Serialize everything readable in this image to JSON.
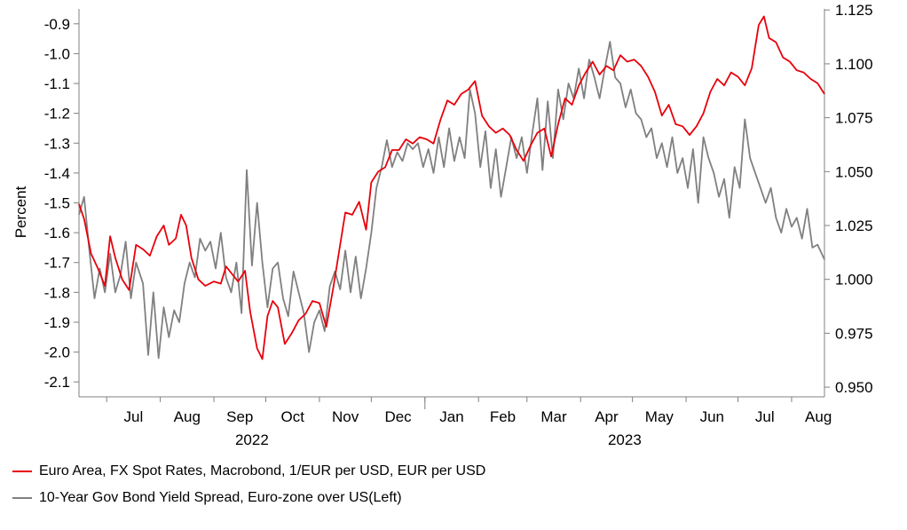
{
  "chart_data": {
    "type": "line",
    "ylabel_left": "Percent",
    "ylabel_right": "",
    "y_left": {
      "lim": [
        -2.15,
        -0.85
      ],
      "ticks": [
        "-0.9",
        "-1.0",
        "-1.1",
        "-1.2",
        "-1.3",
        "-1.4",
        "-1.5",
        "-1.6",
        "-1.7",
        "-1.8",
        "-1.9",
        "-2.0",
        "-2.1"
      ]
    },
    "y_right": {
      "lim": [
        0.9455,
        1.1255
      ],
      "ticks": [
        "1.125",
        "1.100",
        "1.075",
        "1.050",
        "1.025",
        "1.000",
        "0.975",
        "0.950"
      ]
    },
    "x_months": [
      "Jul",
      "Aug",
      "Sep",
      "Oct",
      "Nov",
      "Dec",
      "Jan",
      "Feb",
      "Mar",
      "Apr",
      "May",
      "Jun",
      "Jul",
      "Aug"
    ],
    "x_years": [
      "2022",
      "2023"
    ],
    "x_range": [
      "2022-06-15",
      "2023-08-20"
    ],
    "series": [
      {
        "name": "Euro Area, FX Spot Rates, Macrobond, 1/EUR per USD, EUR per USD",
        "axis": "right",
        "color": "#e8000b",
        "points": [
          [
            "2022-06-15",
            1.035
          ],
          [
            "2022-06-18",
            1.028
          ],
          [
            "2022-06-22",
            1.012
          ],
          [
            "2022-06-26",
            1.005
          ],
          [
            "2022-06-30",
            0.997
          ],
          [
            "2022-07-03",
            1.02
          ],
          [
            "2022-07-06",
            1.01
          ],
          [
            "2022-07-10",
            1.0
          ],
          [
            "2022-07-14",
            0.995
          ],
          [
            "2022-07-18",
            1.016
          ],
          [
            "2022-07-22",
            1.014
          ],
          [
            "2022-07-26",
            1.011
          ],
          [
            "2022-07-30",
            1.02
          ],
          [
            "2022-08-03",
            1.025
          ],
          [
            "2022-08-06",
            1.016
          ],
          [
            "2022-08-10",
            1.019
          ],
          [
            "2022-08-13",
            1.03
          ],
          [
            "2022-08-16",
            1.025
          ],
          [
            "2022-08-19",
            1.01
          ],
          [
            "2022-08-23",
            1.0
          ],
          [
            "2022-08-27",
            0.997
          ],
          [
            "2022-09-01",
            0.999
          ],
          [
            "2022-09-05",
            0.998
          ],
          [
            "2022-09-08",
            1.006
          ],
          [
            "2022-09-11",
            1.003
          ],
          [
            "2022-09-15",
            0.999
          ],
          [
            "2022-09-19",
            1.004
          ],
          [
            "2022-09-22",
            0.985
          ],
          [
            "2022-09-26",
            0.968
          ],
          [
            "2022-09-29",
            0.963
          ],
          [
            "2022-10-02",
            0.983
          ],
          [
            "2022-10-05",
            0.99
          ],
          [
            "2022-10-08",
            0.987
          ],
          [
            "2022-10-12",
            0.97
          ],
          [
            "2022-10-16",
            0.975
          ],
          [
            "2022-10-20",
            0.981
          ],
          [
            "2022-10-24",
            0.984
          ],
          [
            "2022-10-28",
            0.99
          ],
          [
            "2022-11-01",
            0.989
          ],
          [
            "2022-11-05",
            0.978
          ],
          [
            "2022-11-09",
            0.996
          ],
          [
            "2022-11-12",
            1.011
          ],
          [
            "2022-11-16",
            1.031
          ],
          [
            "2022-11-20",
            1.03
          ],
          [
            "2022-11-24",
            1.036
          ],
          [
            "2022-11-28",
            1.023
          ],
          [
            "2022-12-01",
            1.045
          ],
          [
            "2022-12-05",
            1.05
          ],
          [
            "2022-12-09",
            1.052
          ],
          [
            "2022-12-13",
            1.06
          ],
          [
            "2022-12-17",
            1.06
          ],
          [
            "2022-12-21",
            1.065
          ],
          [
            "2022-12-25",
            1.063
          ],
          [
            "2022-12-29",
            1.066
          ],
          [
            "2023-01-02",
            1.065
          ],
          [
            "2023-01-06",
            1.063
          ],
          [
            "2023-01-10",
            1.074
          ],
          [
            "2023-01-14",
            1.083
          ],
          [
            "2023-01-18",
            1.081
          ],
          [
            "2023-01-22",
            1.086
          ],
          [
            "2023-01-26",
            1.088
          ],
          [
            "2023-01-30",
            1.092
          ],
          [
            "2023-02-03",
            1.076
          ],
          [
            "2023-02-07",
            1.071
          ],
          [
            "2023-02-11",
            1.068
          ],
          [
            "2023-02-15",
            1.07
          ],
          [
            "2023-02-19",
            1.067
          ],
          [
            "2023-02-23",
            1.06
          ],
          [
            "2023-02-27",
            1.055
          ],
          [
            "2023-03-03",
            1.062
          ],
          [
            "2023-03-07",
            1.068
          ],
          [
            "2023-03-11",
            1.07
          ],
          [
            "2023-03-15",
            1.057
          ],
          [
            "2023-03-19",
            1.072
          ],
          [
            "2023-03-23",
            1.084
          ],
          [
            "2023-03-27",
            1.081
          ],
          [
            "2023-03-31",
            1.09
          ],
          [
            "2023-04-04",
            1.096
          ],
          [
            "2023-04-08",
            1.101
          ],
          [
            "2023-04-12",
            1.095
          ],
          [
            "2023-04-16",
            1.099
          ],
          [
            "2023-04-20",
            1.097
          ],
          [
            "2023-04-24",
            1.104
          ],
          [
            "2023-04-28",
            1.101
          ],
          [
            "2023-05-02",
            1.102
          ],
          [
            "2023-05-06",
            1.099
          ],
          [
            "2023-05-10",
            1.094
          ],
          [
            "2023-05-14",
            1.087
          ],
          [
            "2023-05-18",
            1.076
          ],
          [
            "2023-05-22",
            1.081
          ],
          [
            "2023-05-26",
            1.072
          ],
          [
            "2023-05-30",
            1.071
          ],
          [
            "2023-06-03",
            1.067
          ],
          [
            "2023-06-07",
            1.071
          ],
          [
            "2023-06-11",
            1.077
          ],
          [
            "2023-06-15",
            1.087
          ],
          [
            "2023-06-19",
            1.093
          ],
          [
            "2023-06-23",
            1.09
          ],
          [
            "2023-06-27",
            1.096
          ],
          [
            "2023-07-01",
            1.094
          ],
          [
            "2023-07-05",
            1.09
          ],
          [
            "2023-07-09",
            1.098
          ],
          [
            "2023-07-13",
            1.118
          ],
          [
            "2023-07-16",
            1.122
          ],
          [
            "2023-07-19",
            1.112
          ],
          [
            "2023-07-23",
            1.11
          ],
          [
            "2023-07-27",
            1.103
          ],
          [
            "2023-07-31",
            1.101
          ],
          [
            "2023-08-04",
            1.097
          ],
          [
            "2023-08-08",
            1.096
          ],
          [
            "2023-08-12",
            1.093
          ],
          [
            "2023-08-16",
            1.091
          ],
          [
            "2023-08-20",
            1.086
          ]
        ]
      },
      {
        "name": "10-Year Gov Bond Yield Spread, Euro-zone over US(Left)",
        "axis": "left",
        "color": "#808080",
        "points": [
          [
            "2022-06-15",
            -1.54
          ],
          [
            "2022-06-18",
            -1.48
          ],
          [
            "2022-06-21",
            -1.66
          ],
          [
            "2022-06-24",
            -1.82
          ],
          [
            "2022-06-27",
            -1.72
          ],
          [
            "2022-06-30",
            -1.8
          ],
          [
            "2022-07-03",
            -1.67
          ],
          [
            "2022-07-06",
            -1.8
          ],
          [
            "2022-07-09",
            -1.74
          ],
          [
            "2022-07-12",
            -1.63
          ],
          [
            "2022-07-15",
            -1.82
          ],
          [
            "2022-07-18",
            -1.7
          ],
          [
            "2022-07-22",
            -1.77
          ],
          [
            "2022-07-25",
            -2.01
          ],
          [
            "2022-07-28",
            -1.8
          ],
          [
            "2022-07-31",
            -2.02
          ],
          [
            "2022-08-03",
            -1.85
          ],
          [
            "2022-08-06",
            -1.95
          ],
          [
            "2022-08-09",
            -1.86
          ],
          [
            "2022-08-12",
            -1.9
          ],
          [
            "2022-08-15",
            -1.77
          ],
          [
            "2022-08-18",
            -1.7
          ],
          [
            "2022-08-21",
            -1.75
          ],
          [
            "2022-08-24",
            -1.62
          ],
          [
            "2022-08-27",
            -1.66
          ],
          [
            "2022-08-30",
            -1.63
          ],
          [
            "2022-09-02",
            -1.72
          ],
          [
            "2022-09-05",
            -1.6
          ],
          [
            "2022-09-08",
            -1.75
          ],
          [
            "2022-09-11",
            -1.8
          ],
          [
            "2022-09-14",
            -1.7
          ],
          [
            "2022-09-17",
            -1.87
          ],
          [
            "2022-09-20",
            -1.39
          ],
          [
            "2022-09-23",
            -1.71
          ],
          [
            "2022-09-26",
            -1.5
          ],
          [
            "2022-09-29",
            -1.7
          ],
          [
            "2022-10-02",
            -1.85
          ],
          [
            "2022-10-05",
            -1.72
          ],
          [
            "2022-10-08",
            -1.7
          ],
          [
            "2022-10-11",
            -1.82
          ],
          [
            "2022-10-14",
            -1.88
          ],
          [
            "2022-10-17",
            -1.73
          ],
          [
            "2022-10-20",
            -1.8
          ],
          [
            "2022-10-23",
            -1.87
          ],
          [
            "2022-10-26",
            -2.0
          ],
          [
            "2022-10-29",
            -1.9
          ],
          [
            "2022-11-01",
            -1.86
          ],
          [
            "2022-11-04",
            -1.93
          ],
          [
            "2022-11-07",
            -1.78
          ],
          [
            "2022-11-10",
            -1.73
          ],
          [
            "2022-11-13",
            -1.79
          ],
          [
            "2022-11-16",
            -1.66
          ],
          [
            "2022-11-19",
            -1.8
          ],
          [
            "2022-11-22",
            -1.68
          ],
          [
            "2022-11-25",
            -1.82
          ],
          [
            "2022-11-28",
            -1.72
          ],
          [
            "2022-12-01",
            -1.6
          ],
          [
            "2022-12-04",
            -1.45
          ],
          [
            "2022-12-07",
            -1.38
          ],
          [
            "2022-12-10",
            -1.29
          ],
          [
            "2022-12-13",
            -1.38
          ],
          [
            "2022-12-16",
            -1.33
          ],
          [
            "2022-12-19",
            -1.36
          ],
          [
            "2022-12-22",
            -1.3
          ],
          [
            "2022-12-25",
            -1.32
          ],
          [
            "2022-12-28",
            -1.3
          ],
          [
            "2022-12-31",
            -1.38
          ],
          [
            "2023-01-03",
            -1.32
          ],
          [
            "2023-01-06",
            -1.4
          ],
          [
            "2023-01-09",
            -1.28
          ],
          [
            "2023-01-12",
            -1.38
          ],
          [
            "2023-01-15",
            -1.25
          ],
          [
            "2023-01-18",
            -1.36
          ],
          [
            "2023-01-21",
            -1.28
          ],
          [
            "2023-01-24",
            -1.35
          ],
          [
            "2023-01-27",
            -1.12
          ],
          [
            "2023-01-30",
            -1.2
          ],
          [
            "2023-02-02",
            -1.38
          ],
          [
            "2023-02-05",
            -1.26
          ],
          [
            "2023-02-08",
            -1.45
          ],
          [
            "2023-02-11",
            -1.32
          ],
          [
            "2023-02-14",
            -1.48
          ],
          [
            "2023-02-17",
            -1.38
          ],
          [
            "2023-02-20",
            -1.28
          ],
          [
            "2023-02-23",
            -1.35
          ],
          [
            "2023-02-26",
            -1.28
          ],
          [
            "2023-03-01",
            -1.4
          ],
          [
            "2023-03-04",
            -1.27
          ],
          [
            "2023-03-07",
            -1.15
          ],
          [
            "2023-03-10",
            -1.39
          ],
          [
            "2023-03-13",
            -1.16
          ],
          [
            "2023-03-16",
            -1.35
          ],
          [
            "2023-03-19",
            -1.12
          ],
          [
            "2023-03-22",
            -1.22
          ],
          [
            "2023-03-25",
            -1.1
          ],
          [
            "2023-03-28",
            -1.15
          ],
          [
            "2023-03-31",
            -1.05
          ],
          [
            "2023-04-03",
            -1.15
          ],
          [
            "2023-04-06",
            -1.02
          ],
          [
            "2023-04-09",
            -1.08
          ],
          [
            "2023-04-12",
            -1.15
          ],
          [
            "2023-04-15",
            -1.05
          ],
          [
            "2023-04-18",
            -0.96
          ],
          [
            "2023-04-21",
            -1.08
          ],
          [
            "2023-04-24",
            -1.1
          ],
          [
            "2023-04-27",
            -1.18
          ],
          [
            "2023-04-30",
            -1.12
          ],
          [
            "2023-05-03",
            -1.2
          ],
          [
            "2023-05-06",
            -1.22
          ],
          [
            "2023-05-09",
            -1.28
          ],
          [
            "2023-05-12",
            -1.25
          ],
          [
            "2023-05-15",
            -1.35
          ],
          [
            "2023-05-18",
            -1.3
          ],
          [
            "2023-05-21",
            -1.38
          ],
          [
            "2023-05-24",
            -1.28
          ],
          [
            "2023-05-27",
            -1.4
          ],
          [
            "2023-05-30",
            -1.35
          ],
          [
            "2023-06-02",
            -1.45
          ],
          [
            "2023-06-05",
            -1.32
          ],
          [
            "2023-06-08",
            -1.5
          ],
          [
            "2023-06-11",
            -1.28
          ],
          [
            "2023-06-14",
            -1.35
          ],
          [
            "2023-06-17",
            -1.4
          ],
          [
            "2023-06-20",
            -1.48
          ],
          [
            "2023-06-23",
            -1.42
          ],
          [
            "2023-06-26",
            -1.55
          ],
          [
            "2023-06-29",
            -1.38
          ],
          [
            "2023-07-02",
            -1.45
          ],
          [
            "2023-07-05",
            -1.22
          ],
          [
            "2023-07-08",
            -1.35
          ],
          [
            "2023-07-11",
            -1.4
          ],
          [
            "2023-07-14",
            -1.45
          ],
          [
            "2023-07-17",
            -1.5
          ],
          [
            "2023-07-20",
            -1.45
          ],
          [
            "2023-07-23",
            -1.55
          ],
          [
            "2023-07-26",
            -1.6
          ],
          [
            "2023-07-29",
            -1.52
          ],
          [
            "2023-08-01",
            -1.58
          ],
          [
            "2023-08-04",
            -1.55
          ],
          [
            "2023-08-07",
            -1.62
          ],
          [
            "2023-08-10",
            -1.52
          ],
          [
            "2023-08-13",
            -1.65
          ],
          [
            "2023-08-16",
            -1.64
          ],
          [
            "2023-08-20",
            -1.69
          ]
        ]
      }
    ]
  }
}
